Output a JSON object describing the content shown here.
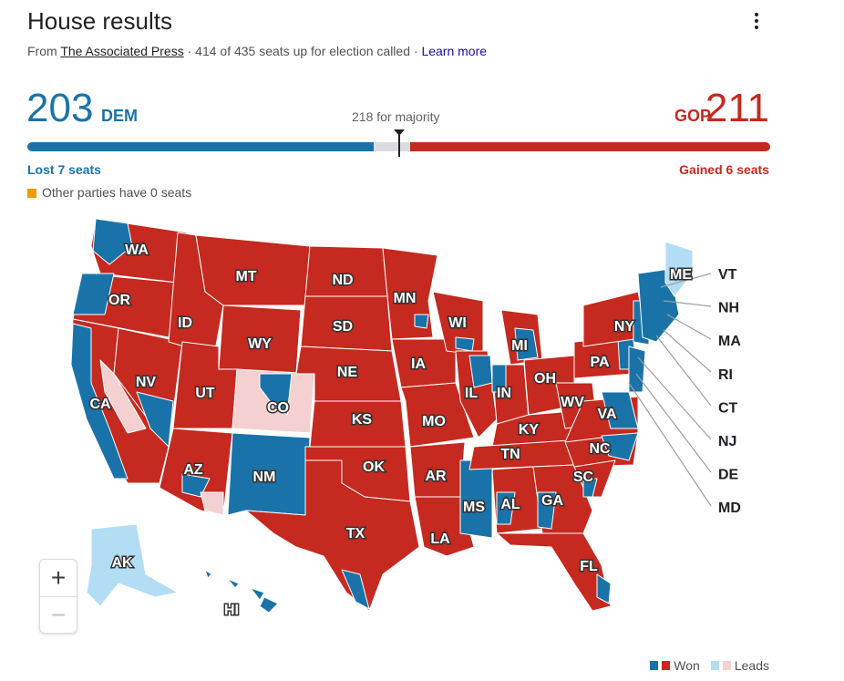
{
  "header": {
    "title": "House results",
    "source_prefix": "From ",
    "source_name": "The Associated Press",
    "called_text": " · 414 of 435 seats up for election called · ",
    "learn_more": "Learn more"
  },
  "tally": {
    "dem_count": "203",
    "dem_label": "DEM",
    "gop_label": "GOP",
    "gop_count": "211",
    "majority_text": "218 for majority",
    "dem_change": "Lost 7 seats",
    "gop_change": "Gained 6 seats",
    "others_text": "Other parties have 0 seats",
    "dem_seats": 203,
    "gop_seats": 211,
    "total_seats": 435
  },
  "colors": {
    "dem": "#1a73a8",
    "gop": "#c5291f",
    "dem_lead": "#b3dcf5",
    "gop_lead": "#f5d0d0",
    "other": "#f29900"
  },
  "map": {
    "states": [
      "WA",
      "OR",
      "CA",
      "NV",
      "ID",
      "MT",
      "WY",
      "UT",
      "CO",
      "AZ",
      "NM",
      "ND",
      "SD",
      "NE",
      "KS",
      "OK",
      "TX",
      "MN",
      "IA",
      "MO",
      "AR",
      "LA",
      "WI",
      "IL",
      "MS",
      "MI",
      "IN",
      "KY",
      "TN",
      "AL",
      "OH",
      "GA",
      "FL",
      "WV",
      "VA",
      "NC",
      "SC",
      "PA",
      "NY",
      "ME",
      "AK",
      "HI"
    ],
    "callouts": [
      "VT",
      "NH",
      "MA",
      "RI",
      "CT",
      "NJ",
      "DE",
      "MD"
    ]
  },
  "zoom": {
    "in": "+",
    "out": "−"
  },
  "legend": {
    "won": "Won",
    "leads": "Leads"
  }
}
